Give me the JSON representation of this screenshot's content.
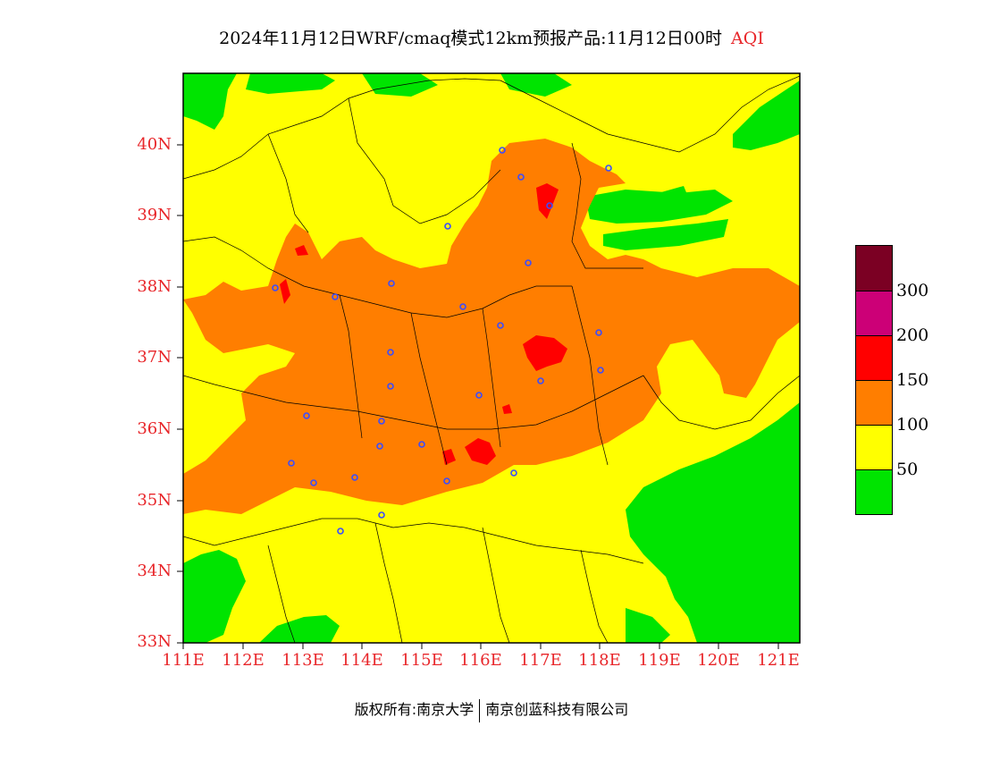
{
  "title": {
    "main": "2024年11月12日WRF/cmaq模式12km预报产品:11月12日00时",
    "variable": "AQI"
  },
  "axes": {
    "lat_labels": [
      "40N",
      "39N",
      "38N",
      "37N",
      "36N",
      "35N",
      "34N",
      "33N"
    ],
    "lon_labels": [
      "111E",
      "112E",
      "113E",
      "114E",
      "115E",
      "116E",
      "117E",
      "118E",
      "119E",
      "120E",
      "121E"
    ]
  },
  "legend": {
    "levels": [
      "300",
      "200",
      "150",
      "100",
      "50"
    ],
    "colors": [
      "#7b0023",
      "#cc0077",
      "#ff0000",
      "#ff7e00",
      "#ffff00",
      "#00e400"
    ]
  },
  "footer": {
    "left": "版权所有:南京大学",
    "right": "南京创蓝科技有限公司"
  },
  "stations_icon": "circle-station-marker"
}
